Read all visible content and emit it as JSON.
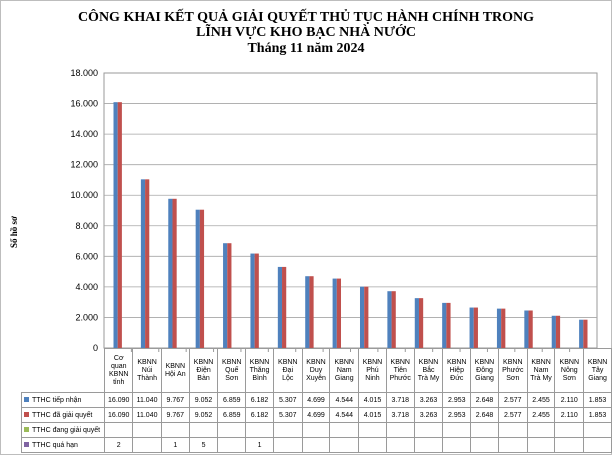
{
  "title_lines": [
    "CÔNG KHAI KẾT QUẢ GIẢI QUYẾT THỦ TỤC HÀNH CHÍNH TRONG",
    "LĨNH VỰC KHO BẠC NHÀ NƯỚC",
    "Tháng  11 năm 2024"
  ],
  "chart_data": {
    "type": "bar",
    "title": "CÔNG KHAI KẾT QUẢ GIẢI QUYẾT THỦ TỤC HÀNH CHÍNH TRONG LĨNH VỰC KHO BẠC NHÀ NƯỚC Tháng  11 năm 2024",
    "ylabel": "Số hồ sơ",
    "ylim": [
      0,
      18000
    ],
    "yticks": [
      "0",
      "2.000",
      "4.000",
      "6.000",
      "8.000",
      "10.000",
      "12.000",
      "14.000",
      "16.000",
      "18.000"
    ],
    "grid": true,
    "legend": "data-table",
    "categories": [
      "Cơ quan KBNN tỉnh",
      "KBNN Núi Thành",
      "KBNN Hội An",
      "KBNN Điện Bàn",
      "KBNN Quế Sơn",
      "KBNN Thăng Bình",
      "KBNN Đại Lộc",
      "KBNN Duy Xuyên",
      "KBNN Nam Giang",
      "KBNN Phú Ninh",
      "KBNN Tiên Phước",
      "KBNN Bắc Trà My",
      "KBNN Hiệp Đức",
      "KBNN Đông Giang",
      "KBNN Phước Sơn",
      "KBNN Nam Trà My",
      "KBNN Nông Sơn",
      "KBNN Tây Giang"
    ],
    "category_lines": [
      [
        "Cơ",
        "quan",
        "KBNN",
        "tỉnh"
      ],
      [
        "KBNN",
        "Núi",
        "Thành"
      ],
      [
        "KBNN",
        "Hội An"
      ],
      [
        "KBNN",
        "Điện",
        "Bàn"
      ],
      [
        "KBNN",
        "Quế",
        "Sơn"
      ],
      [
        "KBNN",
        "Thăng",
        "Bình"
      ],
      [
        "KBNN",
        "Đại",
        "Lộc"
      ],
      [
        "KBNN",
        "Duy",
        "Xuyên"
      ],
      [
        "KBNN",
        "Nam",
        "Giang"
      ],
      [
        "KBNN",
        "Phú",
        "Ninh"
      ],
      [
        "KBNN",
        "Tiên",
        "Phước"
      ],
      [
        "KBNN",
        "Bắc",
        "Trà My"
      ],
      [
        "KBNN",
        "Hiệp",
        "Đức"
      ],
      [
        "KBNN",
        "Đông",
        "Giang"
      ],
      [
        "KBNN",
        "Phước",
        "Sơn"
      ],
      [
        "KBNN",
        "Nam",
        "Trà My"
      ],
      [
        "KBNN",
        "Nông",
        "Sơn"
      ],
      [
        "KBNN",
        "Tây",
        "Giang"
      ]
    ],
    "series": [
      {
        "name": "TTHC tiếp nhận",
        "color": "#4f81bd",
        "values": [
          16090,
          11040,
          9767,
          9052,
          6859,
          6182,
          5307,
          4699,
          4544,
          4015,
          3718,
          3263,
          2953,
          2648,
          2577,
          2455,
          2110,
          1853
        ],
        "labels": [
          "16.090",
          "11.040",
          "9.767",
          "9.052",
          "6.859",
          "6.182",
          "5.307",
          "4.699",
          "4.544",
          "4.015",
          "3.718",
          "3.263",
          "2.953",
          "2.648",
          "2.577",
          "2.455",
          "2.110",
          "1.853"
        ]
      },
      {
        "name": "TTHC đã giải quyết",
        "color": "#c0504d",
        "values": [
          16090,
          11040,
          9767,
          9052,
          6859,
          6182,
          5307,
          4699,
          4544,
          4015,
          3718,
          3263,
          2953,
          2648,
          2577,
          2455,
          2110,
          1853
        ],
        "labels": [
          "16.090",
          "11.040",
          "9.767",
          "9.052",
          "6.859",
          "6.182",
          "5.307",
          "4.699",
          "4.544",
          "4.015",
          "3.718",
          "3.263",
          "2.953",
          "2.648",
          "2.577",
          "2.455",
          "2.110",
          "1.853"
        ]
      },
      {
        "name": "TTHC đang giải quyết",
        "color": "#9bbb59",
        "values": [
          0,
          0,
          0,
          0,
          0,
          0,
          0,
          0,
          0,
          0,
          0,
          0,
          0,
          0,
          0,
          0,
          0,
          0
        ],
        "labels": [
          "",
          "",
          "",
          "",
          "",
          "",
          "",
          "",
          "",
          "",
          "",
          "",
          "",
          "",
          "",
          "",
          "",
          ""
        ]
      },
      {
        "name": "TTHC quá hạn",
        "color": "#8064a2",
        "values": [
          2,
          0,
          1,
          5,
          0,
          1,
          0,
          0,
          0,
          0,
          0,
          0,
          0,
          0,
          0,
          0,
          0,
          0
        ],
        "labels": [
          "2",
          "",
          "1",
          "5",
          "",
          "1",
          "",
          "",
          "",
          "",
          "",
          "",
          "",
          "",
          "",
          "",
          "",
          ""
        ]
      }
    ]
  }
}
